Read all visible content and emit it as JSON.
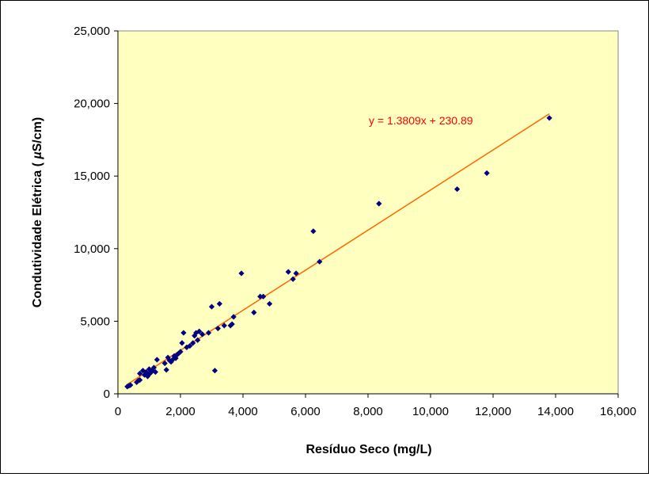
{
  "chart_data": {
    "type": "scatter",
    "title": "",
    "xlabel": "Resíduo Seco (mg/L)",
    "ylabel_prefix": "Condutividade Elétrica ( ",
    "ylabel_mu": "µ",
    "ylabel_suffix": "S/cm)",
    "xlim": [
      0,
      16000
    ],
    "ylim": [
      0,
      25000
    ],
    "xticks": [
      0,
      2000,
      4000,
      6000,
      8000,
      10000,
      12000,
      14000,
      16000
    ],
    "yticks": [
      0,
      5000,
      10000,
      15000,
      20000,
      25000
    ],
    "xtick_labels": [
      "0",
      "2,000",
      "4,000",
      "6,000",
      "8,000",
      "10,000",
      "12,000",
      "14,000",
      "16,000"
    ],
    "ytick_labels": [
      "0",
      "5,000",
      "10,000",
      "15,000",
      "20,000",
      "25,000"
    ],
    "grid": false,
    "plot_area_color": "#FFFFC0",
    "marker_color": "#000080",
    "trendline": {
      "equation_label": "y = 1.3809x + 230.89",
      "slope": 1.3809,
      "intercept": 230.89,
      "x_range": [
        300,
        13800
      ],
      "color": "#FF6600",
      "label_color": "#FF0000"
    },
    "points": [
      [
        300,
        500
      ],
      [
        350,
        550
      ],
      [
        400,
        600
      ],
      [
        600,
        800
      ],
      [
        650,
        900
      ],
      [
        700,
        950
      ],
      [
        700,
        1400
      ],
      [
        800,
        1600
      ],
      [
        850,
        1300
      ],
      [
        900,
        1500
      ],
      [
        950,
        1200
      ],
      [
        1000,
        1700
      ],
      [
        1000,
        1350
      ],
      [
        1050,
        1450
      ],
      [
        1100,
        1600
      ],
      [
        1150,
        1800
      ],
      [
        1200,
        1500
      ],
      [
        1250,
        2350
      ],
      [
        1500,
        2100
      ],
      [
        1550,
        1650
      ],
      [
        1600,
        2500
      ],
      [
        1650,
        2300
      ],
      [
        1700,
        2200
      ],
      [
        1750,
        2350
      ],
      [
        1800,
        2600
      ],
      [
        1850,
        2450
      ],
      [
        1900,
        2700
      ],
      [
        1950,
        2800
      ],
      [
        2000,
        2900
      ],
      [
        2050,
        3500
      ],
      [
        2100,
        4200
      ],
      [
        2200,
        3200
      ],
      [
        2300,
        3300
      ],
      [
        2400,
        3500
      ],
      [
        2450,
        4000
      ],
      [
        2500,
        4200
      ],
      [
        2550,
        3700
      ],
      [
        2600,
        4300
      ],
      [
        2700,
        4100
      ],
      [
        2900,
        4200
      ],
      [
        3000,
        6000
      ],
      [
        3100,
        1600
      ],
      [
        3200,
        4500
      ],
      [
        3250,
        6200
      ],
      [
        3400,
        4700
      ],
      [
        3600,
        4700
      ],
      [
        3650,
        4800
      ],
      [
        3700,
        5300
      ],
      [
        3950,
        8300
      ],
      [
        4350,
        5600
      ],
      [
        4550,
        6700
      ],
      [
        4650,
        6700
      ],
      [
        4850,
        6200
      ],
      [
        5450,
        8400
      ],
      [
        5600,
        7900
      ],
      [
        5700,
        8300
      ],
      [
        6250,
        11200
      ],
      [
        6450,
        9100
      ],
      [
        8350,
        13100
      ],
      [
        10850,
        14100
      ],
      [
        11800,
        15200
      ],
      [
        13800,
        19000
      ]
    ]
  }
}
